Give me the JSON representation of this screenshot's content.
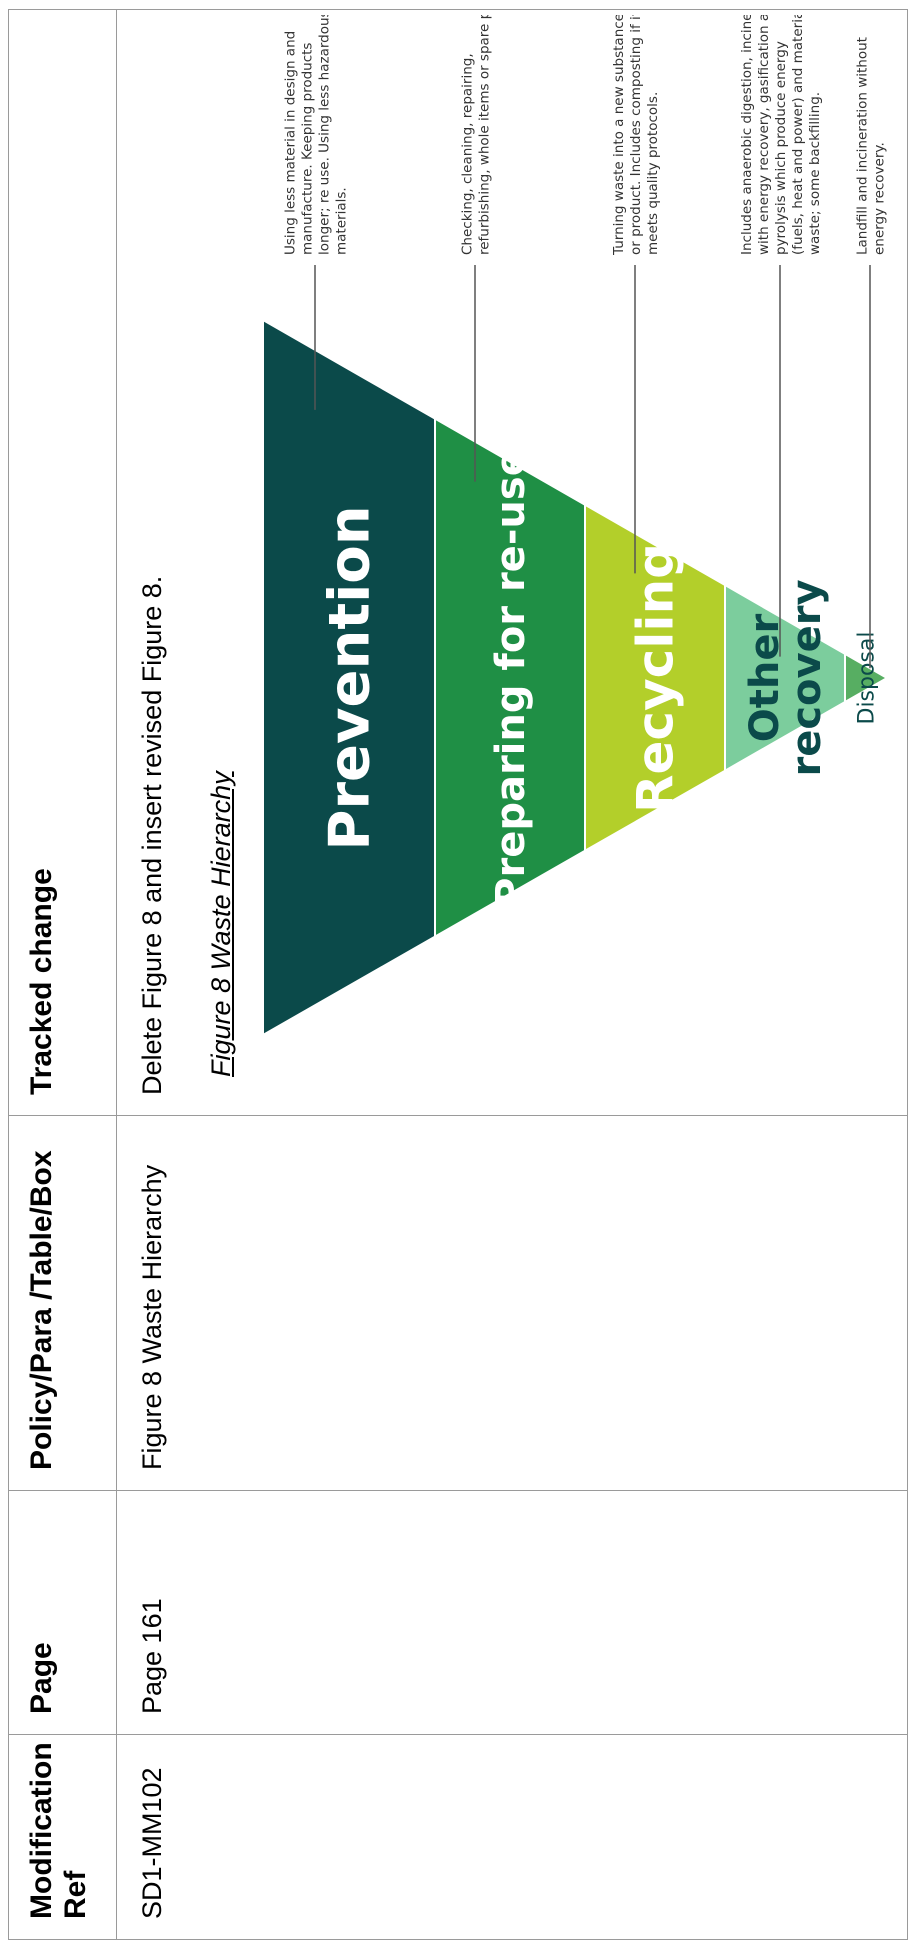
{
  "table": {
    "headers": {
      "modification_ref": "Modification Ref",
      "page": "Page",
      "policy": "Policy/Para /Table/Box",
      "tracked_change": "Tracked change"
    },
    "row": {
      "modification_ref": "SD1-MM102",
      "page": "Page 161",
      "policy": "Figure 8 Waste Hierarchy",
      "tracked_change_text": "Delete Figure 8 and insert revised Figure 8.",
      "figure_caption": "Figure 8 Waste Hierarchy"
    }
  },
  "figure": {
    "tiers": [
      {
        "label": "Prevention",
        "color": "#0b4a4a",
        "text_color": "#ffffff",
        "description": [
          "Using less material in design and",
          "manufacture. Keeping products",
          "longer; re use. Using less hazardous",
          "materials."
        ]
      },
      {
        "label": "Preparing for re-use",
        "color": "#1f8f45",
        "text_color": "#ffffff",
        "description": [
          "Checking, cleaning, repairing,",
          "refurbishing, whole items or spare parts."
        ]
      },
      {
        "label": "Recycling",
        "color": "#b3cf2a",
        "text_color": "#ffffff",
        "description": [
          "Turning waste into a new substance",
          "or product. Includes composting if it",
          "meets quality protocols."
        ]
      },
      {
        "label": "Other recovery",
        "color": "#7ccd9d",
        "text_color": "#0b4a4a",
        "description": [
          "Includes anaerobic digestion, incineration",
          "with energy recovery, gasification and",
          "pyrolysis which produce energy",
          "(fuels, heat and power) and materials from",
          "waste; some backfilling."
        ]
      },
      {
        "label": "Disposal",
        "color": "#57ae62",
        "text_color": "#0b4a4a",
        "description": [
          "Landfill and incineration without",
          "energy recovery."
        ]
      }
    ]
  }
}
